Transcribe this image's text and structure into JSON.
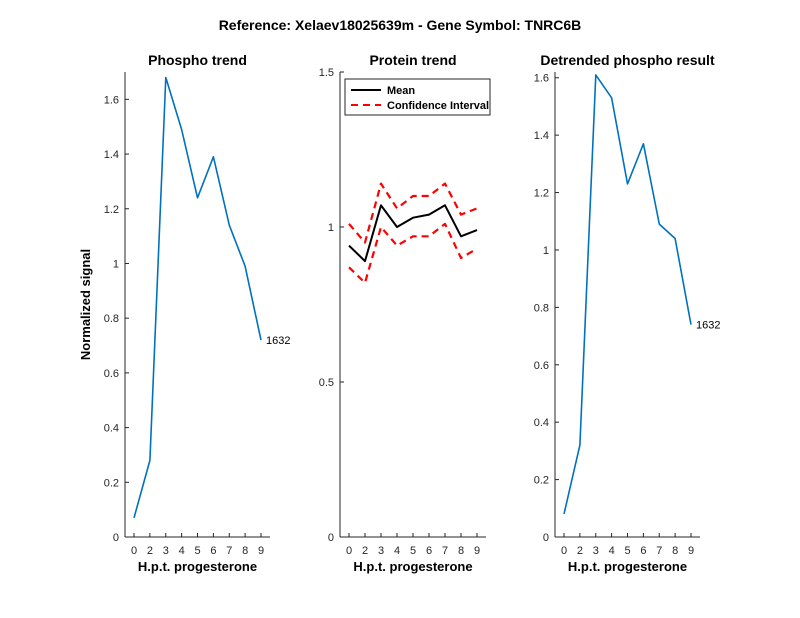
{
  "suptitle": "Reference:  Xelaev18025639m - Gene Symbol:  TNRC6B",
  "chart_data": [
    {
      "type": "line",
      "title": "Phospho trend",
      "xlabel": "H.p.t. progesterone",
      "ylabel": "Normalized signal",
      "categories": [
        "0",
        "2",
        "3",
        "4",
        "5",
        "6",
        "7",
        "8",
        "9"
      ],
      "ylim": [
        0,
        1.7
      ],
      "yticks": [
        0,
        0.2,
        0.4,
        0.6,
        0.8,
        1,
        1.2,
        1.4,
        1.6
      ],
      "series": [
        {
          "name": "Phospho",
          "color": "#0072bd",
          "values": [
            0.07,
            0.28,
            1.68,
            1.49,
            1.24,
            1.39,
            1.14,
            0.99,
            0.72
          ]
        }
      ],
      "annotation": "1632"
    },
    {
      "type": "line",
      "title": "Protein trend",
      "xlabel": "H.p.t. progesterone",
      "ylabel": "",
      "categories": [
        "0",
        "2",
        "3",
        "4",
        "5",
        "6",
        "7",
        "8",
        "9"
      ],
      "ylim": [
        0,
        1.5
      ],
      "yticks": [
        0,
        0.5,
        1,
        1.5
      ],
      "legend": {
        "position": "top-left",
        "entries": [
          "Mean",
          "Confidence Interval"
        ]
      },
      "series": [
        {
          "name": "Mean",
          "color": "#000000",
          "style": "solid",
          "values": [
            0.94,
            0.89,
            1.07,
            1.0,
            1.03,
            1.04,
            1.07,
            0.97,
            0.99
          ]
        },
        {
          "name": "Confidence Interval",
          "color": "#ff0000",
          "style": "dashed",
          "values": [
            1.01,
            0.95,
            1.14,
            1.06,
            1.1,
            1.1,
            1.14,
            1.04,
            1.06
          ]
        },
        {
          "name": "Confidence Interval (lower)",
          "color": "#ff0000",
          "style": "dashed",
          "values": [
            0.87,
            0.82,
            1.0,
            0.94,
            0.97,
            0.97,
            1.01,
            0.9,
            0.93
          ]
        }
      ]
    },
    {
      "type": "line",
      "title": "Detrended phospho result",
      "xlabel": "H.p.t. progesterone",
      "ylabel": "",
      "categories": [
        "0",
        "2",
        "3",
        "4",
        "5",
        "6",
        "7",
        "8",
        "9"
      ],
      "ylim": [
        0,
        1.62
      ],
      "yticks": [
        0,
        0.2,
        0.4,
        0.6,
        0.8,
        1,
        1.2,
        1.4,
        1.6
      ],
      "series": [
        {
          "name": "Detrended",
          "color": "#0072bd",
          "values": [
            0.08,
            0.32,
            1.61,
            1.53,
            1.23,
            1.37,
            1.09,
            1.04,
            0.74
          ]
        }
      ],
      "annotation": "1632"
    }
  ]
}
